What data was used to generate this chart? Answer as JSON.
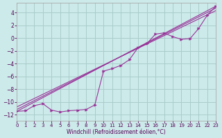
{
  "xlabel": "Windchill (Refroidissement éolien,°C)",
  "background_color": "#cceaea",
  "grid_color": "#aacccc",
  "line_color": "#993399",
  "xlim": [
    0,
    23
  ],
  "ylim": [
    -13,
    5.5
  ],
  "xticks": [
    0,
    1,
    2,
    3,
    4,
    5,
    6,
    7,
    8,
    9,
    10,
    11,
    12,
    13,
    14,
    15,
    16,
    17,
    18,
    19,
    20,
    21,
    22,
    23
  ],
  "yticks": [
    -12,
    -10,
    -8,
    -6,
    -4,
    -2,
    0,
    2,
    4
  ],
  "measured_x": [
    0,
    1,
    2,
    3,
    4,
    5,
    6,
    7,
    8,
    9,
    10,
    11,
    12,
    13,
    14,
    15,
    16,
    17,
    18,
    19,
    20,
    21,
    22,
    23
  ],
  "measured_y": [
    -11.5,
    -11.4,
    -10.6,
    -10.3,
    -11.3,
    -11.6,
    -11.4,
    -11.3,
    -11.2,
    -10.5,
    -5.2,
    -4.8,
    -4.3,
    -3.4,
    -1.5,
    -0.9,
    0.6,
    0.8,
    0.2,
    -0.2,
    -0.1,
    1.5,
    3.6,
    5.0
  ],
  "line1_x": [
    0,
    23
  ],
  "line1_y": [
    -11.5,
    5.0
  ],
  "line2_x": [
    0,
    23
  ],
  "line2_y": [
    -11.2,
    4.7
  ],
  "line3_x": [
    0,
    23
  ],
  "line3_y": [
    -10.8,
    4.3
  ]
}
